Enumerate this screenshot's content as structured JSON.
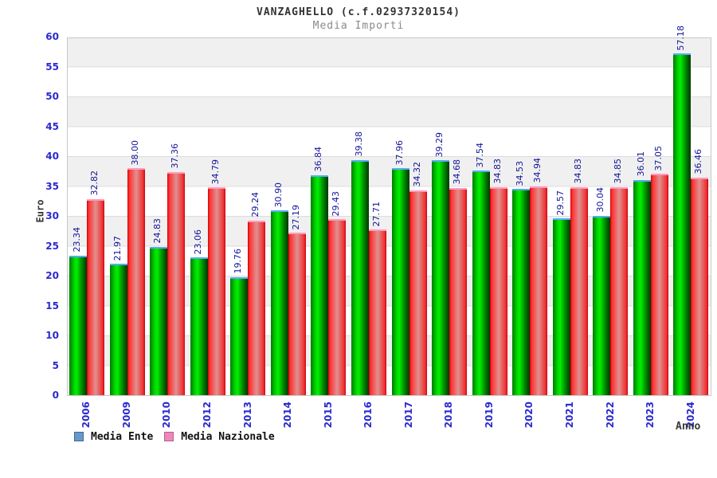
{
  "title": "VANZAGHELLO (c.f.02937320154)",
  "subtitle": "Media Importi",
  "axes": {
    "y_label": "Euro",
    "x_label": "Anno"
  },
  "legend": {
    "items": [
      {
        "label": "Media Ente",
        "swatch_color": "#6699cc"
      },
      {
        "label": "Media Nazionale",
        "swatch_color": "#ee88bb"
      }
    ]
  },
  "colors": {
    "bar_ente_main": "#00ee00",
    "bar_ente_cap": "#5aa9ff",
    "bar_nazionale_main": "#ee3333",
    "bar_nazionale_cap": "#ff9bbd",
    "tick_label": "#2a2ad0",
    "value_label": "#14149b",
    "band_gray": "#f0f0f0",
    "gridline": "#dcdcdc",
    "title_text": "#333333",
    "subtitle_text": "#8a8a8a"
  },
  "chart_data": {
    "type": "bar",
    "title": "VANZAGHELLO (c.f.02937320154)",
    "subtitle": "Media Importi",
    "xlabel": "Anno",
    "ylabel": "Euro",
    "ylim": [
      0,
      60
    ],
    "ytick_step": 5,
    "grid": true,
    "legend_position": "bottom",
    "categories": [
      "2006",
      "2009",
      "2010",
      "2012",
      "2013",
      "2014",
      "2015",
      "2016",
      "2017",
      "2018",
      "2019",
      "2020",
      "2021",
      "2022",
      "2023",
      "2024"
    ],
    "series": [
      {
        "name": "Media Ente",
        "color": "#00ee00",
        "values": [
          23.34,
          21.97,
          24.83,
          23.06,
          19.76,
          30.9,
          36.84,
          39.38,
          37.96,
          39.29,
          37.54,
          34.53,
          29.57,
          30.04,
          36.01,
          57.18
        ]
      },
      {
        "name": "Media Nazionale",
        "color": "#ee3333",
        "values": [
          32.82,
          38.0,
          37.36,
          34.79,
          29.24,
          27.19,
          29.43,
          27.71,
          34.32,
          34.68,
          34.83,
          34.94,
          34.83,
          34.85,
          37.05,
          36.46
        ]
      }
    ]
  }
}
